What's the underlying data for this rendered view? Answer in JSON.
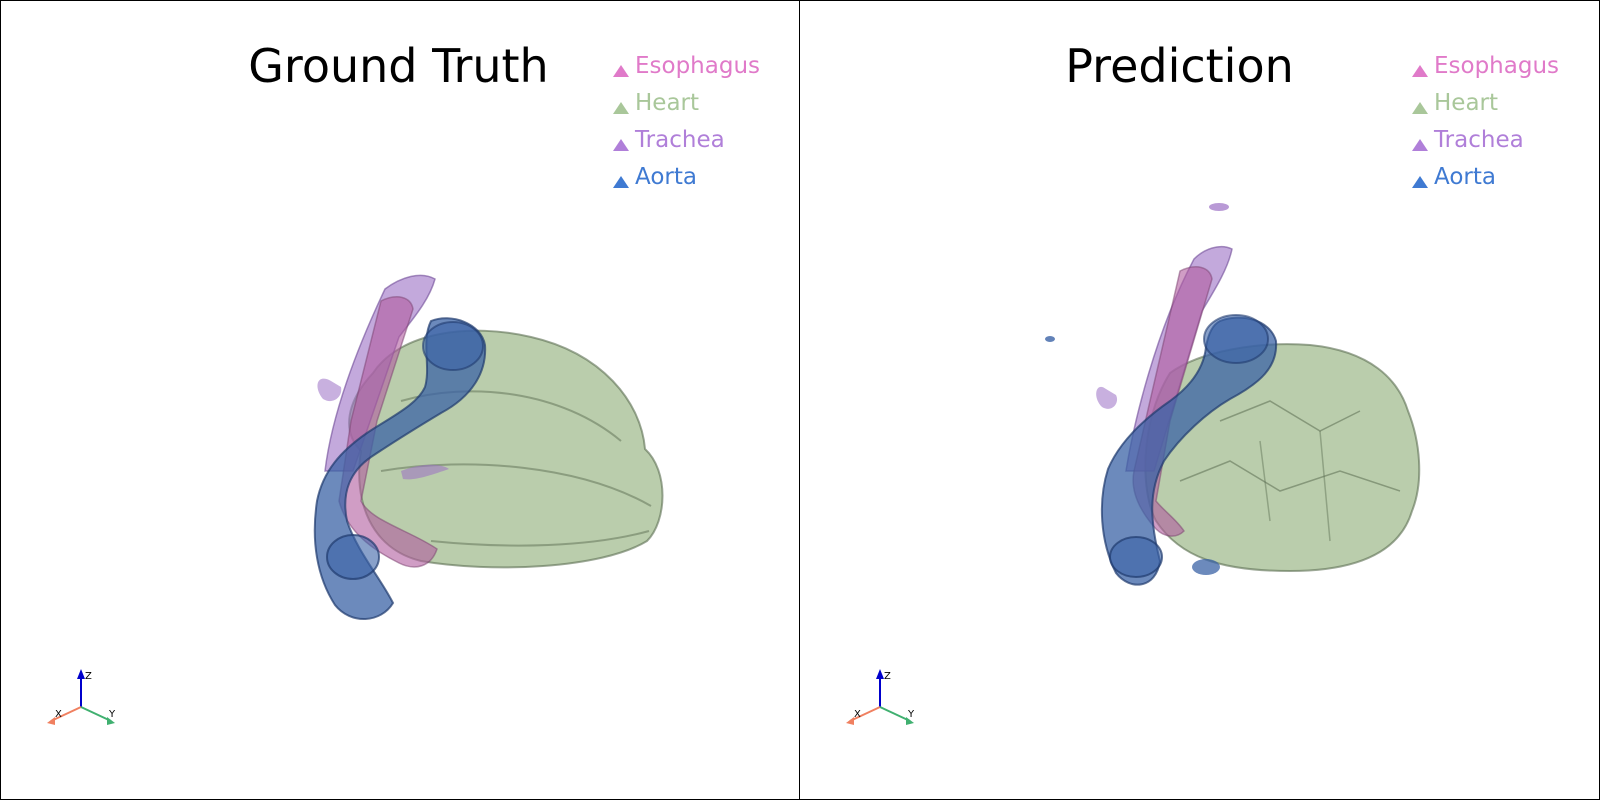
{
  "panels": [
    {
      "title": "Ground Truth"
    },
    {
      "title": "Prediction"
    }
  ],
  "legend": [
    {
      "label": "Esophagus",
      "color": "#e07ac9"
    },
    {
      "label": "Heart",
      "color": "#a9c79a"
    },
    {
      "label": "Trachea",
      "color": "#b07fd9"
    },
    {
      "label": "Aorta",
      "color": "#3f7ad2"
    }
  ],
  "axes": {
    "x": "X",
    "y": "Y",
    "z": "Z"
  },
  "colors": {
    "heart": "#9fba8c",
    "heart_edge": "#5b6e52",
    "aorta": "#3b63a6",
    "aorta_edge": "#1f3a6e",
    "esophagus": "#b05c9e",
    "trachea": "#9b6fc4"
  }
}
